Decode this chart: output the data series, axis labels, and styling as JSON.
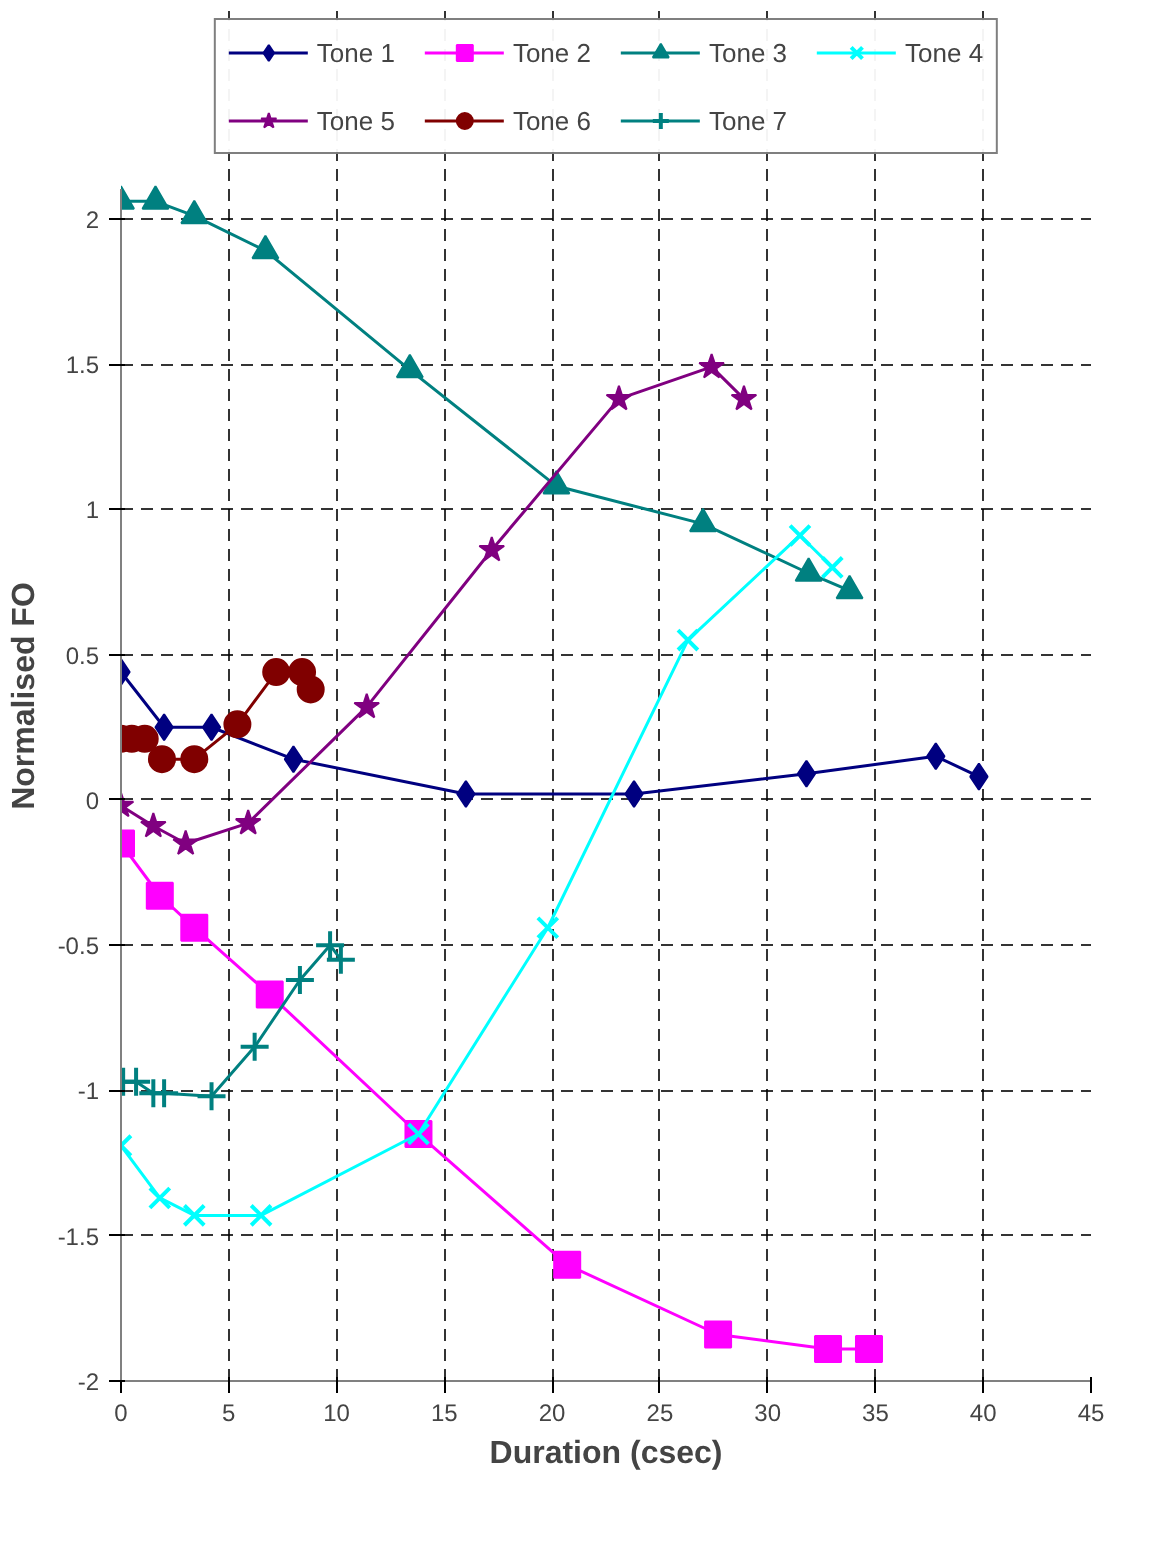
{
  "chart_data": {
    "type": "line",
    "xlabel": "Duration (csec)",
    "ylabel": "Normalised FO",
    "xlim": [
      0,
      45
    ],
    "ylim": [
      -2,
      2.1
    ],
    "xticks": [
      0,
      5,
      10,
      15,
      20,
      25,
      30,
      35,
      40,
      45
    ],
    "yticks": [
      -2,
      -1.5,
      -1,
      -0.5,
      0,
      0.5,
      1,
      1.5,
      2
    ],
    "grid": true,
    "legend": "top",
    "line_style": "solid",
    "series": [
      {
        "name": "Tone 1",
        "color": "#000080",
        "marker": "diamond",
        "x": [
          0,
          2,
          4.2,
          8,
          16,
          23.8,
          31.8,
          37.8,
          39.8
        ],
        "values": [
          0.44,
          0.25,
          0.25,
          0.14,
          0.02,
          0.02,
          0.09,
          0.15,
          0.08
        ]
      },
      {
        "name": "Tone 2",
        "color": "#ff00ff",
        "marker": "square",
        "x": [
          0,
          1.8,
          3.4,
          6.9,
          13.8,
          20.7,
          27.7,
          32.8,
          34.7
        ],
        "values": [
          -0.15,
          -0.33,
          -0.44,
          -0.67,
          -1.15,
          -1.6,
          -1.84,
          -1.89,
          -1.89
        ]
      },
      {
        "name": "Tone 3",
        "color": "#008080",
        "marker": "triangle",
        "x": [
          0,
          1.6,
          3.4,
          6.7,
          13.4,
          20.2,
          27,
          31.9,
          33.8
        ],
        "values": [
          2.06,
          2.06,
          2.01,
          1.89,
          1.48,
          1.08,
          0.95,
          0.78,
          0.72
        ]
      },
      {
        "name": "Tone 4",
        "color": "#00ffff",
        "marker": "x",
        "x": [
          0,
          1.8,
          3.4,
          6.5,
          13.8,
          19.8,
          26.3,
          31.5,
          33
        ],
        "values": [
          -1.19,
          -1.37,
          -1.43,
          -1.43,
          -1.15,
          -0.44,
          0.55,
          0.91,
          0.8
        ]
      },
      {
        "name": "Tone 5",
        "color": "#800080",
        "marker": "star",
        "x": [
          0,
          1.5,
          3,
          5.9,
          11.4,
          17.2,
          23.1,
          27.4,
          28.9
        ],
        "values": [
          -0.02,
          -0.09,
          -0.15,
          -0.08,
          0.32,
          0.86,
          1.38,
          1.49,
          1.38
        ]
      },
      {
        "name": "Tone 6",
        "color": "#800000",
        "marker": "circle",
        "x": [
          0,
          0.5,
          1.1,
          1.9,
          3.4,
          5.4,
          7.2,
          8.4,
          8.8
        ],
        "values": [
          0.21,
          0.21,
          0.21,
          0.14,
          0.14,
          0.26,
          0.44,
          0.44,
          0.38
        ]
      },
      {
        "name": "Tone 7",
        "color": "#008080",
        "marker": "cross",
        "x": [
          0.1,
          0.7,
          1.5,
          2,
          4.2,
          6.2,
          8.3,
          9.7,
          10.2
        ],
        "values": [
          -0.97,
          -0.97,
          -1.01,
          -1.01,
          -1.02,
          -0.85,
          -0.62,
          -0.5,
          -0.55
        ]
      }
    ]
  }
}
